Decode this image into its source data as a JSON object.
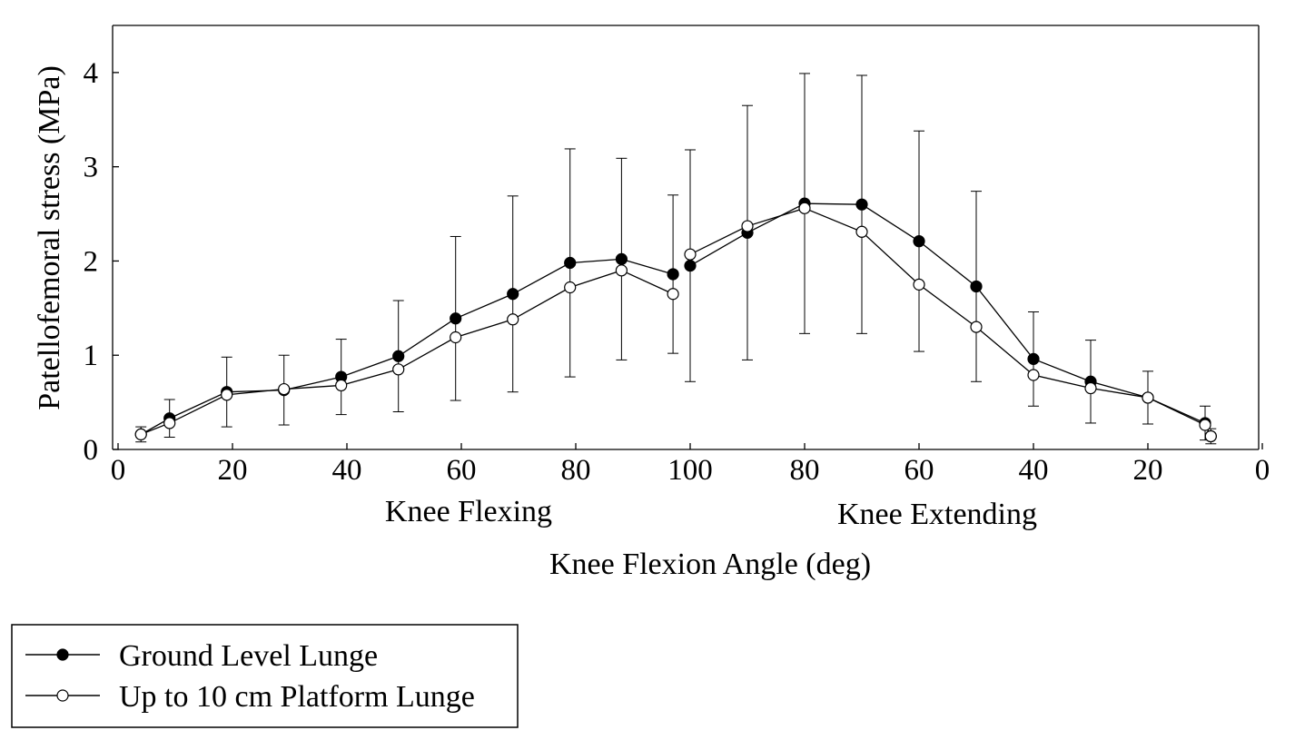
{
  "chart_data": {
    "type": "line",
    "title": "",
    "ylabel": "Patellofemoral stress (MPa)",
    "xlabel": "Knee Flexion Angle (deg)",
    "phase_labels": [
      "Knee Flexing",
      "Knee Extending"
    ],
    "ylim": [
      0,
      4.5
    ],
    "yticks": [
      0,
      1,
      2,
      3,
      4
    ],
    "xticks": [
      "0",
      "20",
      "40",
      "60",
      "80",
      "100",
      "80",
      "60",
      "40",
      "20",
      "0"
    ],
    "x_positions": [
      4,
      9,
      19,
      29,
      39,
      49,
      59,
      69,
      79,
      88,
      97,
      100,
      110,
      120,
      130,
      140,
      150,
      160,
      170,
      180,
      190,
      191
    ],
    "x_phase": [
      "flexing",
      "flexing",
      "flexing",
      "flexing",
      "flexing",
      "flexing",
      "flexing",
      "flexing",
      "flexing",
      "flexing",
      "flexing",
      "extending",
      "extending",
      "extending",
      "extending",
      "extending",
      "extending",
      "extending",
      "extending",
      "extending",
      "extending",
      "extending"
    ],
    "grid": false,
    "legend_position": "bottom-left",
    "series": [
      {
        "name": "Ground Level Lunge",
        "marker": "filled-circle",
        "values": [
          0.16,
          0.33,
          0.61,
          0.63,
          0.77,
          0.99,
          1.39,
          1.65,
          1.98,
          2.02,
          1.86,
          1.95,
          2.3,
          2.61,
          2.6,
          2.21,
          1.73,
          0.96,
          0.72,
          0.55,
          0.28,
          0.14
        ],
        "error": [
          0.08,
          0.2,
          0.37,
          0.37,
          0.4,
          0.59,
          0.87,
          1.04,
          1.21,
          1.07,
          0.84,
          1.23,
          1.35,
          1.38,
          1.37,
          1.17,
          1.01,
          0.5,
          0.44,
          0.28,
          0.18,
          0.08
        ]
      },
      {
        "name": "Up to 10 cm Platform Lunge",
        "marker": "open-circle",
        "values": [
          0.16,
          0.28,
          0.58,
          0.64,
          0.68,
          0.85,
          1.19,
          1.38,
          1.72,
          1.9,
          1.65,
          2.07,
          2.37,
          2.56,
          2.31,
          1.75,
          1.3,
          0.79,
          0.65,
          0.55,
          0.26,
          0.14
        ]
      }
    ],
    "colors": {
      "line": "#000000",
      "open_marker_fill": "#ffffff",
      "filled_marker_fill": "#000000"
    }
  }
}
